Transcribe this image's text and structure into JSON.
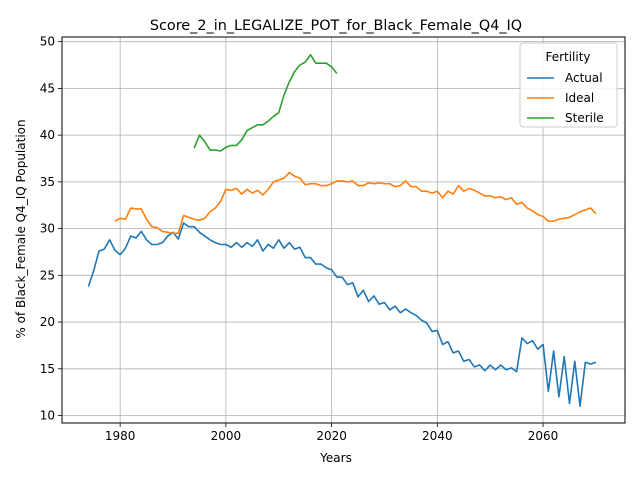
{
  "chart_data": {
    "type": "line",
    "title": "Score_2_in_LEGALIZE_POT_for_Black_Female_Q4_IQ",
    "xlabel": "Years",
    "ylabel": "% of Black_Female Q4_IQ Population",
    "xlim": [
      1969,
      2075.5
    ],
    "ylim": [
      9.2,
      50.5
    ],
    "xticks": [
      1980,
      2000,
      2020,
      2040,
      2060
    ],
    "yticks": [
      10,
      15,
      20,
      25,
      30,
      35,
      40,
      45,
      50
    ],
    "grid": true,
    "legend": {
      "title": "Fertility",
      "position": "upper-right"
    },
    "series": [
      {
        "name": "Actual",
        "color": "#1f77b4",
        "x": [
          1974,
          1975,
          1976,
          1977,
          1978,
          1979,
          1980,
          1981,
          1982,
          1983,
          1984,
          1985,
          1986,
          1987,
          1988,
          1989,
          1990,
          1991,
          1992,
          1993,
          1994,
          1995,
          1996,
          1997,
          1998,
          1999,
          2000,
          2001,
          2002,
          2003,
          2004,
          2005,
          2006,
          2007,
          2008,
          2009,
          2010,
          2011,
          2012,
          2013,
          2014,
          2015,
          2016,
          2017,
          2018,
          2019,
          2020,
          2021,
          2022,
          2023,
          2024,
          2025,
          2026,
          2027,
          2028,
          2029,
          2030,
          2031,
          2032,
          2033,
          2034,
          2035,
          2036,
          2037,
          2038,
          2039,
          2040,
          2041,
          2042,
          2043,
          2044,
          2045,
          2046,
          2047,
          2048,
          2049,
          2050,
          2051,
          2052,
          2053,
          2054,
          2055,
          2056,
          2057,
          2058,
          2059,
          2060,
          2061,
          2062,
          2063,
          2064,
          2065,
          2066,
          2067,
          2068,
          2069,
          2070
        ],
        "values": [
          23.8,
          25.5,
          27.6,
          27.8,
          28.8,
          27.7,
          27.2,
          27.9,
          29.2,
          29.0,
          29.7,
          28.8,
          28.3,
          28.3,
          28.5,
          29.2,
          29.6,
          28.9,
          30.6,
          30.2,
          30.2,
          29.6,
          29.2,
          28.8,
          28.5,
          28.3,
          28.3,
          28.0,
          28.5,
          28.0,
          28.5,
          28.1,
          28.8,
          27.6,
          28.3,
          27.9,
          28.8,
          27.9,
          28.5,
          27.8,
          28.0,
          26.9,
          26.9,
          26.2,
          26.2,
          25.8,
          25.6,
          24.8,
          24.8,
          24.0,
          24.2,
          22.7,
          23.4,
          22.2,
          22.8,
          21.9,
          22.1,
          21.3,
          21.7,
          21.0,
          21.4,
          21.0,
          20.7,
          20.2,
          19.9,
          19.0,
          19.1,
          17.6,
          17.9,
          16.7,
          16.9,
          15.8,
          16.0,
          15.2,
          15.4,
          14.8,
          15.4,
          14.9,
          15.4,
          14.9,
          15.1,
          14.7,
          18.3,
          17.7,
          18.0,
          17.1,
          17.6,
          12.6,
          16.9,
          12.0,
          16.3,
          11.3,
          15.8,
          11.0,
          15.7,
          15.5,
          15.7
        ]
      },
      {
        "name": "Ideal",
        "color": "#ff7f0e",
        "x": [
          1979,
          1980,
          1981,
          1982,
          1983,
          1984,
          1985,
          1986,
          1987,
          1988,
          1989,
          1990,
          1991,
          1992,
          1993,
          1994,
          1995,
          1996,
          1997,
          1998,
          1999,
          2000,
          2001,
          2002,
          2003,
          2004,
          2005,
          2006,
          2007,
          2008,
          2009,
          2010,
          2011,
          2012,
          2013,
          2014,
          2015,
          2016,
          2017,
          2018,
          2019,
          2020,
          2021,
          2022,
          2023,
          2024,
          2025,
          2026,
          2027,
          2028,
          2029,
          2030,
          2031,
          2032,
          2033,
          2034,
          2035,
          2036,
          2037,
          2038,
          2039,
          2040,
          2041,
          2042,
          2043,
          2044,
          2045,
          2046,
          2047,
          2048,
          2049,
          2050,
          2051,
          2052,
          2053,
          2054,
          2055,
          2056,
          2057,
          2058,
          2059,
          2060,
          2061,
          2062,
          2063,
          2064,
          2065,
          2066,
          2067,
          2068,
          2069,
          2070
        ],
        "values": [
          30.8,
          31.1,
          31.0,
          32.2,
          32.1,
          32.1,
          31.0,
          30.2,
          30.1,
          29.7,
          29.6,
          29.5,
          29.5,
          31.4,
          31.2,
          31.0,
          30.9,
          31.1,
          31.8,
          32.2,
          32.9,
          34.2,
          34.1,
          34.3,
          33.7,
          34.2,
          33.8,
          34.1,
          33.6,
          34.2,
          35.0,
          35.2,
          35.4,
          36.0,
          35.6,
          35.4,
          34.7,
          34.8,
          34.8,
          34.6,
          34.6,
          34.8,
          35.1,
          35.1,
          35.0,
          35.1,
          34.6,
          34.6,
          34.9,
          34.8,
          34.9,
          34.8,
          34.8,
          34.5,
          34.6,
          35.1,
          34.5,
          34.5,
          34.0,
          34.0,
          33.8,
          34.0,
          33.3,
          34.0,
          33.7,
          34.6,
          34.0,
          34.3,
          34.1,
          33.8,
          33.5,
          33.5,
          33.3,
          33.4,
          33.1,
          33.3,
          32.6,
          32.8,
          32.2,
          31.9,
          31.5,
          31.3,
          30.8,
          30.8,
          31.0,
          31.1,
          31.2,
          31.5,
          31.8,
          32.0,
          32.2,
          31.6
        ]
      },
      {
        "name": "Sterile",
        "color": "#2ca02c",
        "x": [
          1994,
          1995,
          1996,
          1997,
          1998,
          1999,
          2000,
          2001,
          2002,
          2003,
          2004,
          2005,
          2006,
          2007,
          2008,
          2009,
          2010,
          2011,
          2012,
          2013,
          2014,
          2015,
          2016,
          2017,
          2018,
          2019,
          2020,
          2021
        ],
        "values": [
          38.6,
          40.0,
          39.3,
          38.4,
          38.4,
          38.3,
          38.7,
          38.9,
          38.9,
          39.5,
          40.5,
          40.8,
          41.1,
          41.1,
          41.5,
          42.0,
          42.4,
          44.3,
          45.7,
          46.8,
          47.5,
          47.8,
          48.6,
          47.7,
          47.7,
          47.7,
          47.3,
          46.6
        ]
      }
    ]
  }
}
